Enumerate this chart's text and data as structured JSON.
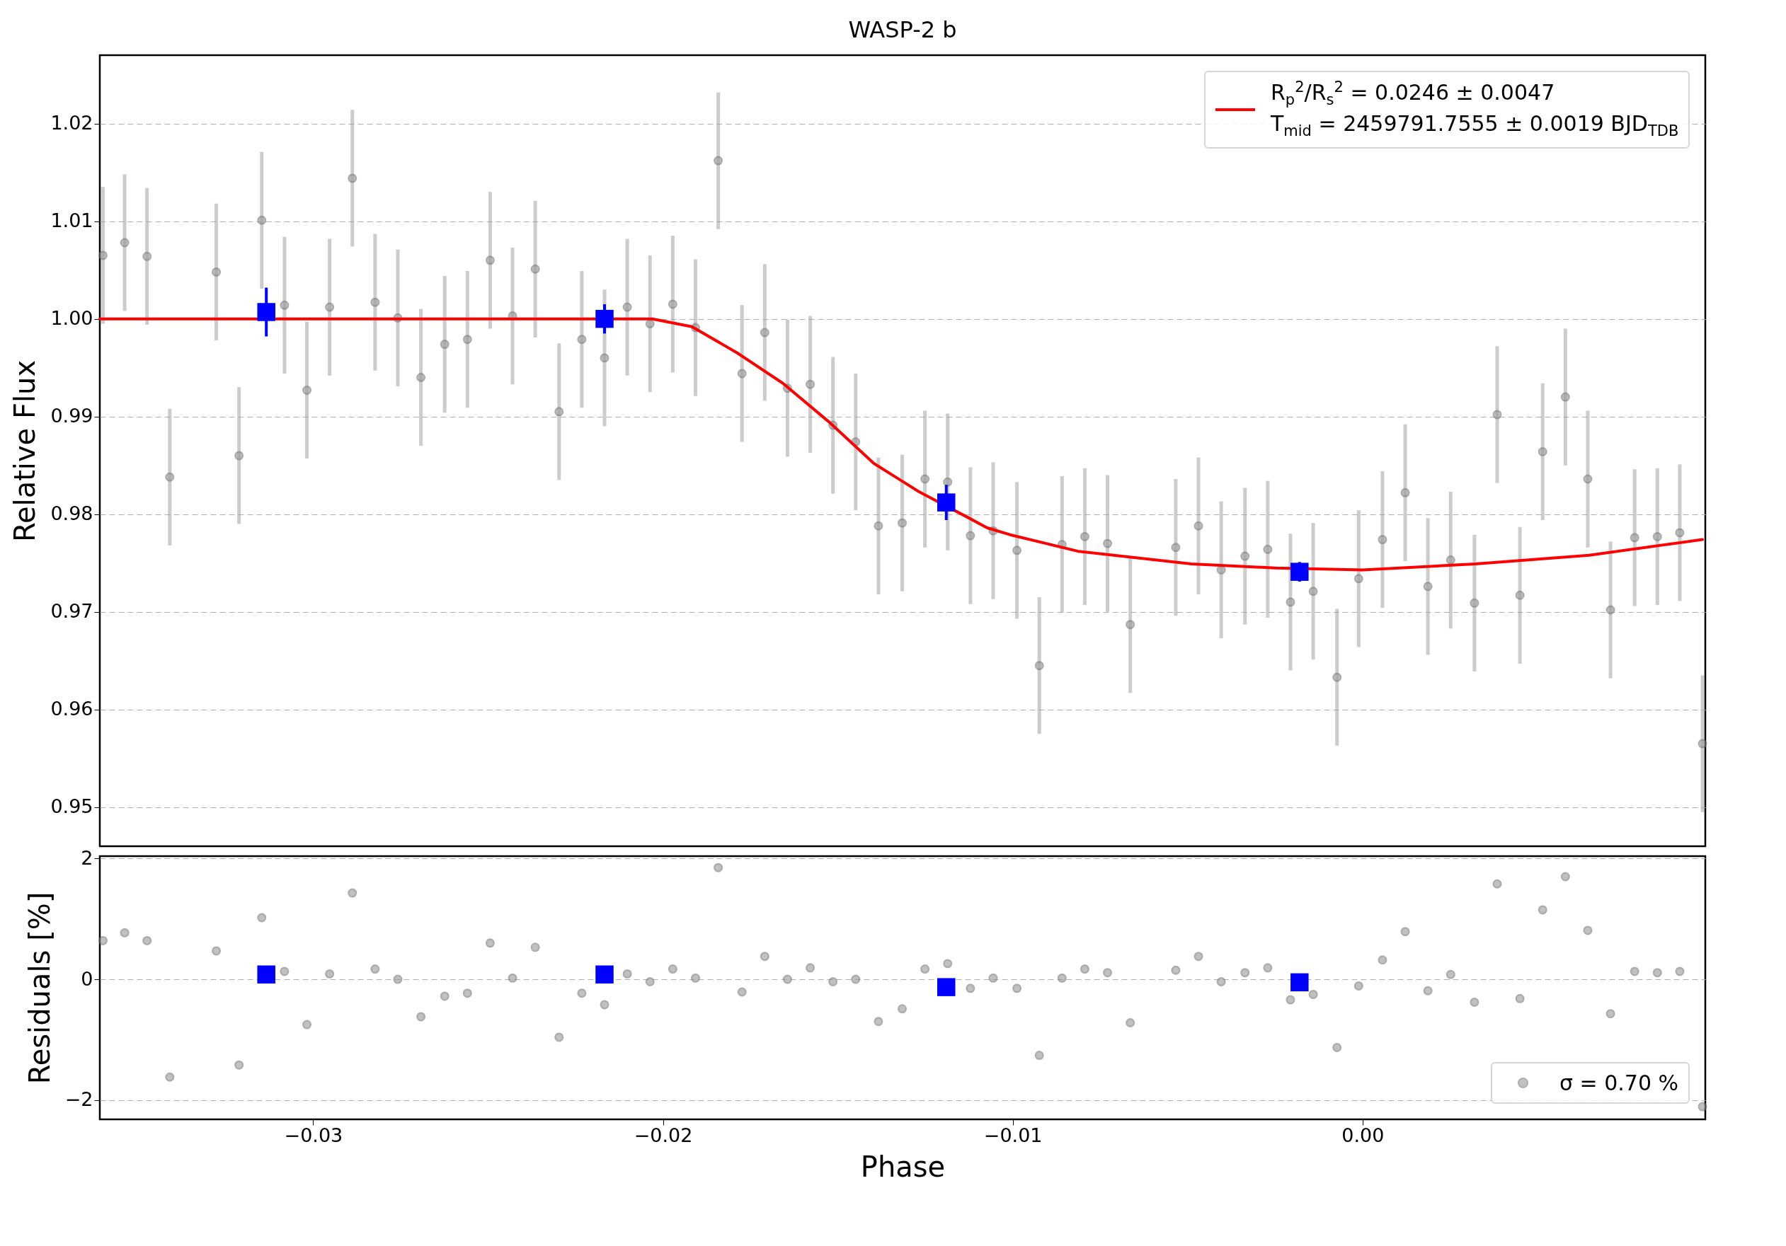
{
  "chart_data": [
    {
      "type": "scatter",
      "title": "WASP-2 b",
      "ylabel": "Relative Flux",
      "x": [
        -0.03601,
        -0.03539,
        -0.03475,
        -0.0341,
        -0.03277,
        -0.03212,
        -0.03147,
        -0.03082,
        -0.03018,
        -0.02953,
        -0.02888,
        -0.02823,
        -0.02758,
        -0.02692,
        -0.02624,
        -0.02559,
        -0.02494,
        -0.0243,
        -0.02365,
        -0.02297,
        -0.02232,
        -0.02167,
        -0.02102,
        -0.02037,
        -0.01972,
        -0.01907,
        -0.01842,
        -0.01774,
        -0.01709,
        -0.01644,
        -0.01579,
        -0.01514,
        -0.01449,
        -0.01384,
        -0.01316,
        -0.01251,
        -0.01186,
        -0.01121,
        -0.01056,
        -0.00988,
        -0.00924,
        -0.00859,
        -0.00794,
        -0.00729,
        -0.00664,
        -0.00534,
        -0.00469,
        -0.00404,
        -0.00336,
        -0.00271,
        -0.00206,
        -0.00141,
        -0.00073,
        -0.00011,
        0.00057,
        0.00122,
        0.00187,
        0.00252,
        0.0032,
        0.00385,
        0.0045,
        0.00515,
        0.0058,
        0.00644,
        0.00709,
        0.00778,
        0.00843,
        0.00907,
        0.00972
      ],
      "series": [
        {
          "color": "#999999",
          "marker": "circle",
          "values": [
            1.0065,
            1.0078,
            1.0064,
            0.9838,
            1.0048,
            0.986,
            1.0101,
            1.0014,
            0.9927,
            1.0012,
            1.0144,
            1.0017,
            1.0001,
            0.994,
            0.9974,
            0.9979,
            1.006,
            1.0003,
            1.0051,
            0.9905,
            0.9979,
            0.996,
            1.0012,
            0.9995,
            1.0015,
            0.9991,
            1.0162,
            0.9944,
            0.9986,
            0.9929,
            0.9933,
            0.9891,
            0.9874,
            0.9788,
            0.9791,
            0.9836,
            0.9833,
            0.9778,
            0.9783,
            0.9763,
            0.9645,
            0.9769,
            0.9777,
            0.977,
            0.9687,
            0.9766,
            0.9788,
            0.9743,
            0.9757,
            0.9764,
            0.971,
            0.9721,
            0.9633,
            0.9734,
            0.9774,
            0.9822,
            0.9726,
            0.9753,
            0.9709,
            0.9902,
            0.9717,
            0.9864,
            0.992,
            0.9836,
            0.9702,
            0.9776,
            0.9777,
            0.9781,
            0.9565
          ],
          "errors": [
            0.007,
            0.007,
            0.007,
            0.007,
            0.007,
            0.007,
            0.007,
            0.007,
            0.007,
            0.007,
            0.007,
            0.007,
            0.007,
            0.007,
            0.007,
            0.007,
            0.007,
            0.007,
            0.007,
            0.007,
            0.007,
            0.007,
            0.007,
            0.007,
            0.007,
            0.007,
            0.007,
            0.007,
            0.007,
            0.007,
            0.007,
            0.007,
            0.007,
            0.007,
            0.007,
            0.007,
            0.007,
            0.007,
            0.007,
            0.007,
            0.007,
            0.007,
            0.007,
            0.007,
            0.007,
            0.007,
            0.007,
            0.007,
            0.007,
            0.007,
            0.007,
            0.007,
            0.007,
            0.007,
            0.007,
            0.007,
            0.007,
            0.007,
            0.007,
            0.007,
            0.007,
            0.007,
            0.007,
            0.007,
            0.007,
            0.007,
            0.007,
            0.007,
            0.007
          ]
        },
        {
          "type": "line",
          "name": "R$_{p}$$^{2}$/R$_{s}$$^{2}$ = 0.0246 ± 0.0047\nT$_{mid}$ = 2459791.7555 ± 0.0019 BJD$_{TDB}$",
          "color": "#ff0000",
          "line_style": "solid",
          "x": [
            -0.0361,
            -0.0203,
            -0.01917,
            -0.01787,
            -0.01657,
            -0.01527,
            -0.01397,
            -0.01268,
            -0.0113,
            -0.01073,
            -0.01008,
            -0.00813,
            -0.00489,
            -0.0025,
            0.0,
            0.00323,
            0.00648,
            0.00972
          ],
          "values": [
            1.0,
            1.0,
            0.9992,
            0.9965,
            0.9934,
            0.9895,
            0.9852,
            0.9823,
            0.9797,
            0.9786,
            0.9779,
            0.9762,
            0.9749,
            0.9745,
            0.9743,
            0.9749,
            0.9758,
            0.9774
          ]
        },
        {
          "color": "#0000ff",
          "marker": "square",
          "x": [
            -0.03134,
            -0.02167,
            -0.0119,
            -0.0018
          ],
          "values": [
            1.0007,
            1.0,
            0.9812,
            0.9741
          ],
          "errors": [
            0.0025,
            0.0015,
            0.0018,
            0.001
          ]
        }
      ],
      "xlim": [
        -0.0361,
        0.0098
      ],
      "ylim": [
        0.946,
        1.027
      ],
      "yticks": [
        0.95,
        0.96,
        0.97,
        0.98,
        0.99,
        {
          "value": 1.0,
          "label": "1.00"
        },
        1.01,
        1.02
      ],
      "grid": "y",
      "legend": "top right",
      "tick_labels": "y"
    },
    {
      "type": "scatter",
      "xlabel": "Phase",
      "ylabel": "Residuals [%]",
      "x": [
        -0.03601,
        -0.03539,
        -0.03475,
        -0.0341,
        -0.03277,
        -0.03212,
        -0.03147,
        -0.03082,
        -0.03018,
        -0.02953,
        -0.02888,
        -0.02823,
        -0.02758,
        -0.02692,
        -0.02624,
        -0.02559,
        -0.02494,
        -0.0243,
        -0.02365,
        -0.02297,
        -0.02232,
        -0.02167,
        -0.02102,
        -0.02037,
        -0.01972,
        -0.01907,
        -0.01842,
        -0.01774,
        -0.01709,
        -0.01644,
        -0.01579,
        -0.01514,
        -0.01449,
        -0.01384,
        -0.01316,
        -0.01251,
        -0.01186,
        -0.01121,
        -0.01056,
        -0.00988,
        -0.00924,
        -0.00859,
        -0.00794,
        -0.00729,
        -0.00664,
        -0.00534,
        -0.00469,
        -0.00404,
        -0.00336,
        -0.00271,
        -0.00206,
        -0.00141,
        -0.00073,
        -0.00011,
        0.00057,
        0.00122,
        0.00187,
        0.00252,
        0.0032,
        0.00385,
        0.0045,
        0.00515,
        0.0058,
        0.00644,
        0.00709,
        0.00778,
        0.00843,
        0.00907,
        0.00972
      ],
      "series": [
        {
          "name": "σ = 0.70 %",
          "color": "#999999",
          "marker": "circle",
          "values": [
            0.64,
            0.77,
            0.64,
            -1.62,
            0.47,
            -1.42,
            1.02,
            0.13,
            -0.75,
            0.09,
            1.43,
            0.17,
            0.0,
            -0.62,
            -0.28,
            -0.23,
            0.6,
            0.02,
            0.53,
            -0.96,
            -0.23,
            -0.42,
            0.09,
            -0.04,
            0.17,
            0.02,
            1.85,
            -0.21,
            0.38,
            0,
            0.19,
            -0.04,
            0,
            -0.7,
            -0.49,
            0.17,
            0.26,
            -0.15,
            0.02,
            -0.15,
            -1.26,
            0.02,
            0.17,
            0.11,
            -0.72,
            0.15,
            0.38,
            -0.04,
            0.11,
            0.19,
            -0.34,
            -0.25,
            -1.13,
            -0.11,
            0.32,
            0.79,
            -0.19,
            0.08,
            -0.38,
            1.58,
            -0.32,
            1.15,
            1.7,
            0.81,
            -0.57,
            0.13,
            0.11,
            0.13,
            -2.11
          ]
        },
        {
          "color": "#0000ff",
          "marker": "square",
          "x": [
            -0.03134,
            -0.02167,
            -0.0119,
            -0.0018
          ],
          "values": [
            0.08,
            0.08,
            -0.13,
            -0.05
          ]
        }
      ],
      "xlim": [
        -0.0361,
        0.0098
      ],
      "ylim": [
        -2.32,
        2.04
      ],
      "xticks": [
        {
          "value": -0.03,
          "label": "−0.03"
        },
        {
          "value": -0.02,
          "label": "−0.02"
        },
        {
          "value": -0.01,
          "label": "−0.01"
        },
        {
          "value": 0,
          "label": "0.00"
        }
      ],
      "yticks": [
        {
          "value": -2,
          "label": "−2"
        },
        0,
        2
      ],
      "grid": "y",
      "legend": "bottom right"
    }
  ]
}
